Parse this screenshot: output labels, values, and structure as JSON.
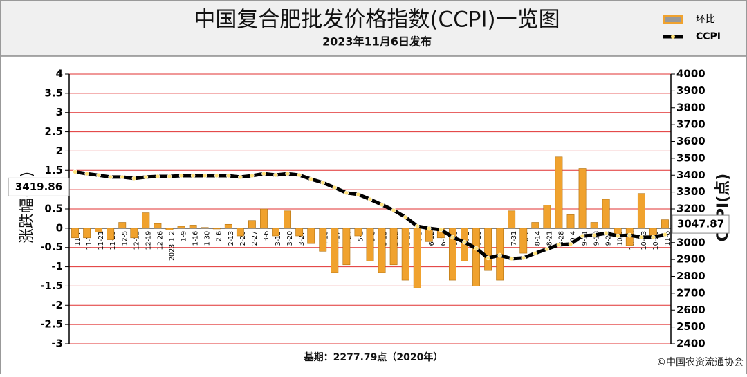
{
  "chart_data": {
    "type": "combo",
    "title": "中国复合肥批发价格指数(CCPI)一览图",
    "subtitle": "2023年11月6日发布",
    "y_label": "涨跌幅(%)",
    "y2_label": "CCPI(点)",
    "base_note": "基期：2277.79点（2020年）",
    "source": "©中国农资流通协会",
    "categories": [
      "11-7",
      "11-14",
      "11-21",
      "11-28",
      "12-5",
      "12-12",
      "12-19",
      "12-26",
      "2023-1-2",
      "1-9",
      "1-16",
      "1-30",
      "2-6",
      "2-13",
      "2-20",
      "2-27",
      "3-6",
      "3-13",
      "3-20",
      "3-27",
      "4-3",
      "4-10",
      "4-17",
      "4-24",
      "5-1",
      "5-8",
      "5-15",
      "5-22",
      "5-29",
      "6-5",
      "6-12",
      "6-19",
      "6-26",
      "7-3",
      "7-10",
      "7-17",
      "7-24",
      "7-31",
      "8-7",
      "8-14",
      "8-21",
      "8-28",
      "9-4",
      "9-11",
      "9-18",
      "9-25",
      "10-9",
      "10-16",
      "10-23",
      "10-30",
      "11-6"
    ],
    "series": [
      {
        "name": "环比",
        "type": "bar",
        "color": "#f0a22e",
        "axis": "y",
        "values": [
          -0.25,
          -0.25,
          -0.1,
          -0.3,
          0.15,
          -0.25,
          0.4,
          0.12,
          -0.05,
          0.05,
          0.08,
          0.02,
          -0.02,
          0.1,
          -0.2,
          0.2,
          0.5,
          -0.2,
          0.45,
          -0.2,
          -0.4,
          -0.6,
          -1.15,
          -0.95,
          -0.2,
          -0.85,
          -1.15,
          -0.95,
          -1.35,
          -1.55,
          -0.35,
          -0.25,
          -1.35,
          -0.85,
          -1.5,
          -1.1,
          -1.35,
          0.45,
          -0.65,
          0.15,
          0.6,
          1.85,
          0.35,
          1.55,
          0.15,
          0.75,
          -0.15,
          -0.45,
          0.9,
          -0.2,
          0.22
        ]
      },
      {
        "name": "CCPI",
        "type": "line",
        "color": "#000000",
        "marker_color": "#ffe27a",
        "axis": "y2",
        "values": [
          3419.86,
          3409,
          3400,
          3389,
          3389,
          3381,
          3389,
          3393,
          3393,
          3397,
          3397,
          3397,
          3397,
          3397,
          3389,
          3397,
          3409,
          3401,
          3409,
          3401,
          3377,
          3356,
          3327,
          3295,
          3286,
          3257,
          3225,
          3192,
          3151,
          3098,
          3085,
          3077,
          3032,
          3003,
          2966,
          2909,
          2925,
          2905,
          2909,
          2937,
          2962,
          2987,
          2991,
          3040,
          3044,
          3056,
          3040,
          3044,
          3032,
          3032,
          3047.87
        ]
      }
    ],
    "ylim": [
      -3,
      4
    ],
    "yticks": [
      -3,
      -2.5,
      -2,
      -1.5,
      -1,
      -0.5,
      0,
      0.5,
      1,
      1.5,
      2,
      2.5,
      3,
      3.5,
      4
    ],
    "y2lim": [
      2400,
      4000
    ],
    "y2ticks": [
      2400,
      2500,
      2600,
      2700,
      2800,
      2900,
      3000,
      3100,
      3200,
      3300,
      3400,
      3500,
      3600,
      3700,
      3800,
      3900,
      4000
    ],
    "grid": true,
    "grid_color": "#e03030",
    "legend": "top-right"
  }
}
